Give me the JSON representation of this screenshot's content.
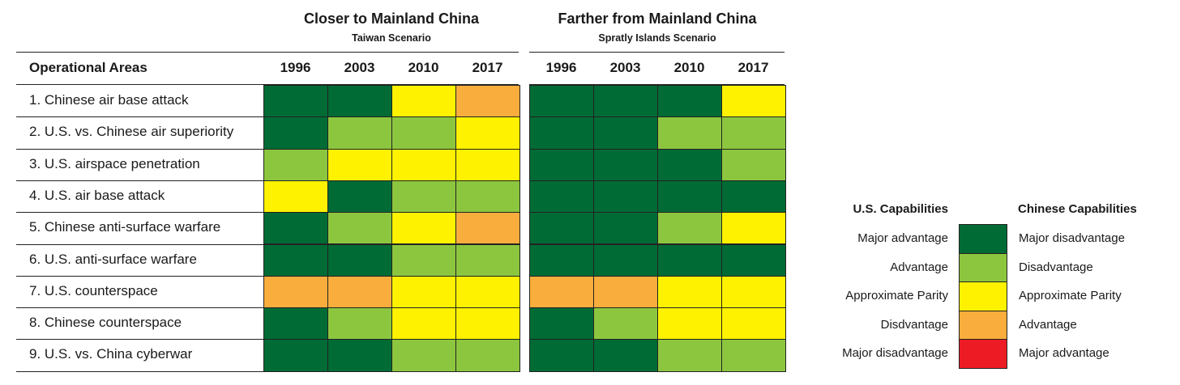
{
  "chart_data": {
    "type": "heatmap",
    "row_header": "Operational Areas",
    "rows": [
      "1. Chinese air base attack",
      "2. U.S. vs. Chinese air superiority",
      "3. U.S. airspace penetration",
      "4. U.S. air base attack",
      "5. Chinese anti-surface warfare",
      "6. U.S. anti-surface warfare",
      "7. U.S. counterspace",
      "8. Chinese counterspace",
      "9. U.S. vs. China cyberwar"
    ],
    "scenarios": [
      {
        "title": "Closer to Mainland China",
        "subtitle": "Taiwan Scenario",
        "years": [
          "1996",
          "2003",
          "2010",
          "2017"
        ],
        "values": [
          [
            1,
            1,
            3,
            4
          ],
          [
            1,
            2,
            2,
            3
          ],
          [
            2,
            3,
            3,
            3
          ],
          [
            3,
            1,
            2,
            2
          ],
          [
            1,
            2,
            3,
            4
          ],
          [
            1,
            1,
            2,
            2
          ],
          [
            4,
            4,
            3,
            3
          ],
          [
            1,
            2,
            3,
            3
          ],
          [
            1,
            1,
            2,
            2
          ]
        ]
      },
      {
        "title": "Farther from Mainland China",
        "subtitle": "Spratly Islands Scenario",
        "years": [
          "1996",
          "2003",
          "2010",
          "2017"
        ],
        "values": [
          [
            1,
            1,
            1,
            3
          ],
          [
            1,
            1,
            2,
            2
          ],
          [
            1,
            1,
            1,
            2
          ],
          [
            1,
            1,
            1,
            1
          ],
          [
            1,
            1,
            2,
            3
          ],
          [
            1,
            1,
            1,
            1
          ],
          [
            4,
            4,
            3,
            3
          ],
          [
            1,
            2,
            3,
            3
          ],
          [
            1,
            1,
            2,
            2
          ]
        ]
      }
    ],
    "legend": {
      "left_header": "U.S. Capabilities",
      "right_header": "Chinese Capabilities",
      "levels": [
        {
          "level": 1,
          "color": "#006b35",
          "us": "Major advantage",
          "china": "Major disadvantage"
        },
        {
          "level": 2,
          "color": "#8cc63f",
          "us": "Advantage",
          "china": "Disadvantage"
        },
        {
          "level": 3,
          "color": "#fff200",
          "us": "Approximate Parity",
          "china": "Approximate Parity"
        },
        {
          "level": 4,
          "color": "#f9ad3c",
          "us": "Disdvantage",
          "china": "Advantage"
        },
        {
          "level": 5,
          "color": "#ed1c24",
          "us": "Major disadvantage",
          "china": "Major advantage"
        }
      ],
      "placement": "right"
    }
  }
}
